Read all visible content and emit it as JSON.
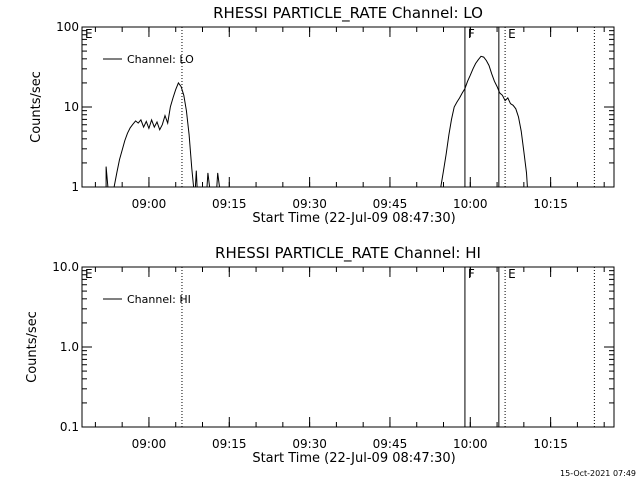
{
  "chart_data": [
    {
      "type": "line",
      "title": "RHESSI PARTICLE_RATE Channel: LO",
      "xlabel": "Start Time (22-Jul-09 08:47:30)",
      "ylabel": "Counts/sec",
      "yscale": "log",
      "ylim": [
        1,
        100
      ],
      "xlim": [
        "08:47:30",
        "10:26:50"
      ],
      "ytick_labels": [
        "1",
        "10",
        "100"
      ],
      "ytick_values": [
        1,
        10,
        100
      ],
      "xtick_labels": [
        "09:00",
        "09:15",
        "09:30",
        "09:45",
        "10:00",
        "10:15"
      ],
      "legend": {
        "placement": "top-left",
        "entries": [
          "Channel: LO"
        ]
      },
      "grid": false,
      "vertical_markers": [
        {
          "label": "E",
          "time": "08:47:30",
          "style": "none"
        },
        {
          "label": "",
          "time": "09:06:10",
          "style": "dotted"
        },
        {
          "label": "F",
          "time": "09:59:00",
          "style": "solid"
        },
        {
          "label": "",
          "time": "10:05:20",
          "style": "solid"
        },
        {
          "label": "E",
          "time": "10:06:30",
          "style": "dotted"
        },
        {
          "label": "",
          "time": "10:23:10",
          "style": "dotted"
        }
      ],
      "series": [
        {
          "segments": [
            [
              [
                "08:52:00",
                1.0
              ],
              [
                "08:52:00",
                1.8
              ],
              [
                "08:52:20",
                1.0
              ]
            ],
            [
              [
                "08:53:30",
                1.0
              ],
              [
                "08:54:00",
                1.5
              ],
              [
                "08:54:30",
                2.2
              ],
              [
                "08:55:00",
                2.9
              ],
              [
                "08:55:30",
                3.8
              ],
              [
                "08:56:00",
                4.7
              ],
              [
                "08:56:30",
                5.5
              ],
              [
                "08:57:00",
                6.1
              ],
              [
                "08:57:30",
                6.7
              ],
              [
                "08:58:00",
                6.3
              ],
              [
                "08:58:30",
                6.9
              ],
              [
                "08:59:00",
                5.6
              ],
              [
                "08:59:30",
                6.6
              ],
              [
                "09:00:00",
                5.4
              ],
              [
                "09:00:30",
                6.9
              ],
              [
                "09:01:00",
                5.6
              ],
              [
                "09:01:30",
                6.5
              ],
              [
                "09:02:00",
                5.2
              ],
              [
                "09:02:30",
                6.0
              ],
              [
                "09:03:00",
                7.8
              ],
              [
                "09:03:30",
                6.3
              ],
              [
                "09:04:00",
                10.1
              ],
              [
                "09:04:30",
                13.0
              ],
              [
                "09:05:00",
                16.5
              ],
              [
                "09:05:30",
                20.0
              ],
              [
                "09:06:00",
                18.0
              ],
              [
                "09:06:30",
                14.0
              ],
              [
                "09:07:00",
                9.0
              ],
              [
                "09:07:30",
                4.5
              ],
              [
                "09:08:00",
                1.7
              ],
              [
                "09:08:20",
                1.0
              ]
            ],
            [
              [
                "09:08:40",
                1.0
              ],
              [
                "09:08:50",
                1.6
              ],
              [
                "09:09:00",
                1.0
              ]
            ],
            [
              [
                "09:10:50",
                1.0
              ],
              [
                "09:11:00",
                1.5
              ],
              [
                "09:11:20",
                1.0
              ]
            ],
            [
              [
                "09:12:40",
                1.0
              ],
              [
                "09:12:50",
                1.5
              ],
              [
                "09:13:10",
                1.0
              ]
            ],
            [
              [
                "09:54:30",
                1.0
              ],
              [
                "09:55:00",
                1.6
              ],
              [
                "09:55:30",
                2.6
              ],
              [
                "09:56:00",
                4.5
              ],
              [
                "09:56:30",
                7.0
              ],
              [
                "09:57:00",
                10.0
              ],
              [
                "09:57:30",
                11.5
              ],
              [
                "09:58:00",
                13.0
              ],
              [
                "09:58:30",
                15.0
              ],
              [
                "09:59:00",
                17.0
              ],
              [
                "09:59:30",
                21.0
              ],
              [
                "10:00:00",
                25.0
              ],
              [
                "10:00:30",
                30.0
              ],
              [
                "10:01:00",
                35.0
              ],
              [
                "10:01:30",
                39.0
              ],
              [
                "10:02:00",
                43.0
              ],
              [
                "10:02:30",
                42.0
              ],
              [
                "10:03:00",
                38.0
              ],
              [
                "10:03:30",
                33.0
              ],
              [
                "10:04:00",
                26.0
              ],
              [
                "10:04:30",
                21.0
              ],
              [
                "10:05:00",
                18.0
              ],
              [
                "10:05:30",
                15.0
              ],
              [
                "10:06:00",
                14.0
              ],
              [
                "10:06:30",
                12.0
              ],
              [
                "10:07:00",
                13.0
              ],
              [
                "10:07:30",
                11.0
              ],
              [
                "10:08:00",
                10.5
              ],
              [
                "10:08:30",
                9.5
              ],
              [
                "10:09:00",
                7.5
              ],
              [
                "10:09:30",
                5.0
              ],
              [
                "10:10:00",
                2.8
              ],
              [
                "10:10:30",
                1.5
              ],
              [
                "10:10:40",
                1.0
              ]
            ]
          ]
        }
      ]
    },
    {
      "type": "line",
      "title": "RHESSI PARTICLE_RATE Channel: HI",
      "xlabel": "Start Time (22-Jul-09 08:47:30)",
      "ylabel": "Counts/sec",
      "yscale": "log",
      "ylim": [
        0.1,
        10
      ],
      "xlim": [
        "08:47:30",
        "10:26:50"
      ],
      "ytick_labels": [
        "0.1",
        "1.0",
        "10.0"
      ],
      "ytick_values": [
        0.1,
        1,
        10
      ],
      "xtick_labels": [
        "09:00",
        "09:15",
        "09:30",
        "09:45",
        "10:00",
        "10:15"
      ],
      "legend": {
        "placement": "top-left",
        "entries": [
          "Channel: HI"
        ]
      },
      "grid": false,
      "vertical_markers": [
        {
          "label": "E",
          "time": "08:47:30",
          "style": "none"
        },
        {
          "label": "",
          "time": "09:06:10",
          "style": "dotted"
        },
        {
          "label": "F",
          "time": "09:59:00",
          "style": "solid"
        },
        {
          "label": "",
          "time": "10:05:20",
          "style": "solid"
        },
        {
          "label": "E",
          "time": "10:06:30",
          "style": "dotted"
        },
        {
          "label": "",
          "time": "10:23:10",
          "style": "dotted"
        }
      ],
      "series": [
        {
          "segments": []
        }
      ]
    }
  ],
  "footer": {
    "timestamp": "15-Oct-2021 07:49"
  }
}
